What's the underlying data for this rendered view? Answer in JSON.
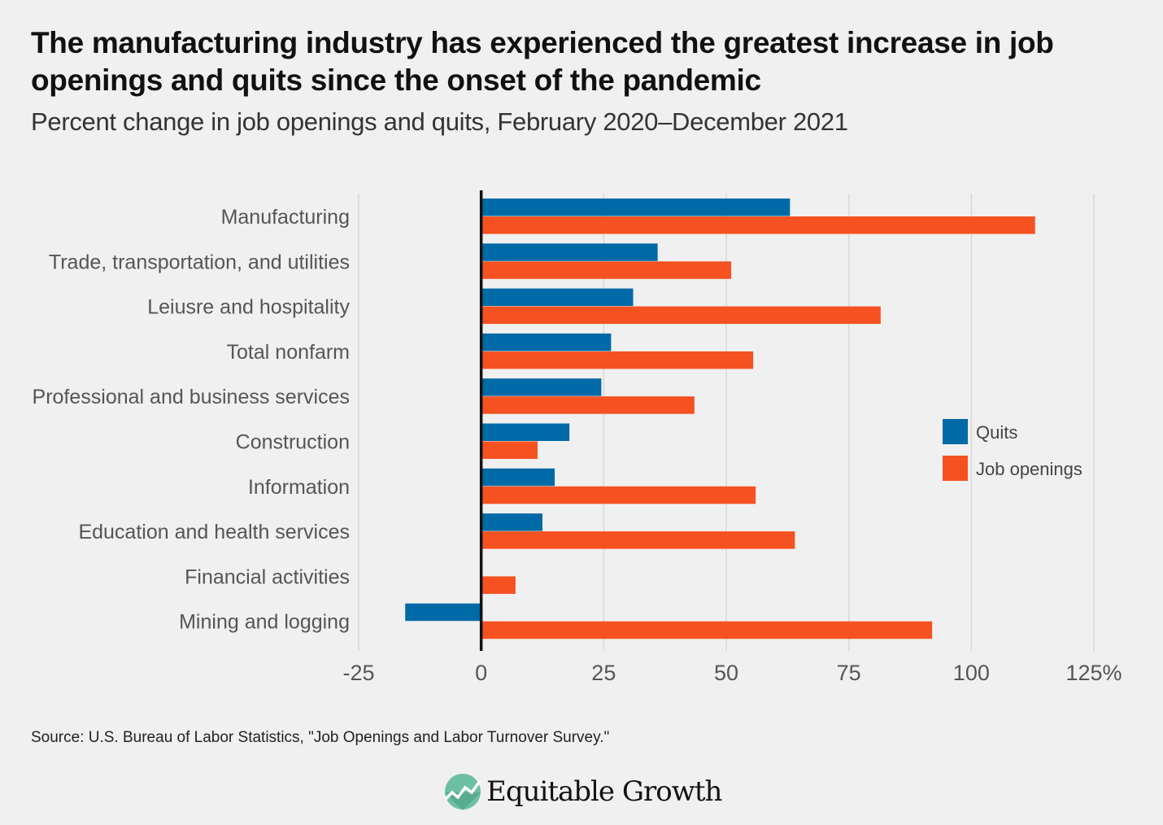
{
  "title": "The manufacturing industry has experienced the greatest increase in job openings and quits since the onset of the pandemic",
  "subtitle": "Percent change in job openings and quits, February 2020–December 2021",
  "source": "Source: U.S. Bureau of Labor Statistics, \"Job Openings and Labor Turnover Survey.\"",
  "logo": {
    "text": "Equitable Growth"
  },
  "chart_data": {
    "type": "bar",
    "orientation": "horizontal",
    "categories": [
      "Manufacturing",
      "Trade, transportation, and utilities",
      "Leiusre and hospitality",
      "Total nonfarm",
      "Professional and business services",
      "Construction",
      "Information",
      "Education and health services",
      "Financial activities",
      "Mining and logging"
    ],
    "series": [
      {
        "name": "Quits",
        "color": "#006aa7",
        "values": [
          63,
          36,
          31,
          26.5,
          24.5,
          18,
          15,
          12.5,
          0,
          -15.5
        ]
      },
      {
        "name": "Job openings",
        "color": "#f65120",
        "values": [
          113,
          51,
          81.5,
          55.5,
          43.5,
          11.5,
          56,
          64,
          7,
          92
        ]
      }
    ],
    "xlim": [
      -25,
      125
    ],
    "xticks": [
      -25,
      0,
      25,
      50,
      75,
      100,
      125
    ],
    "xtick_labels": [
      "-25",
      "0",
      "25",
      "50",
      "75",
      "100",
      "125%"
    ],
    "grid": "vertical",
    "legend": "right"
  }
}
